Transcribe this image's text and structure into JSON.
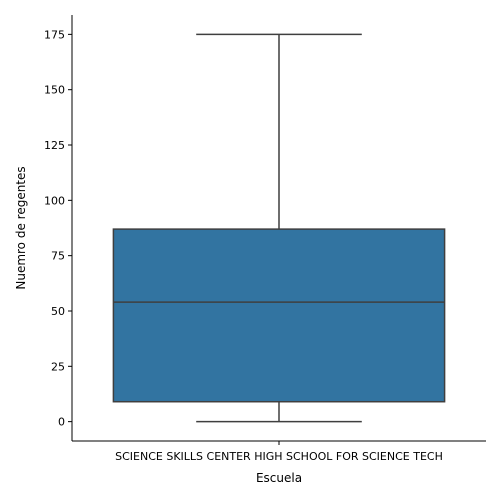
{
  "chart_data": {
    "type": "box",
    "title": "",
    "xlabel": "Escuela",
    "ylabel": "Nuemro de regentes",
    "categories": [
      "SCIENCE SKILLS CENTER HIGH SCHOOL FOR SCIENCE TECH"
    ],
    "boxes": [
      {
        "category": "SCIENCE SKILLS CENTER HIGH SCHOOL FOR SCIENCE TECH",
        "whisker_low": 0,
        "q1": 9,
        "median": 54,
        "q3": 87,
        "whisker_high": 175
      }
    ],
    "yticks": [
      0,
      25,
      50,
      75,
      100,
      125,
      150,
      175
    ],
    "ylim": [
      -8.75,
      183.75
    ],
    "grid": false,
    "legend": "none",
    "colors": {
      "box_fill": "#3274a1",
      "line": "#3f3f3f"
    }
  }
}
